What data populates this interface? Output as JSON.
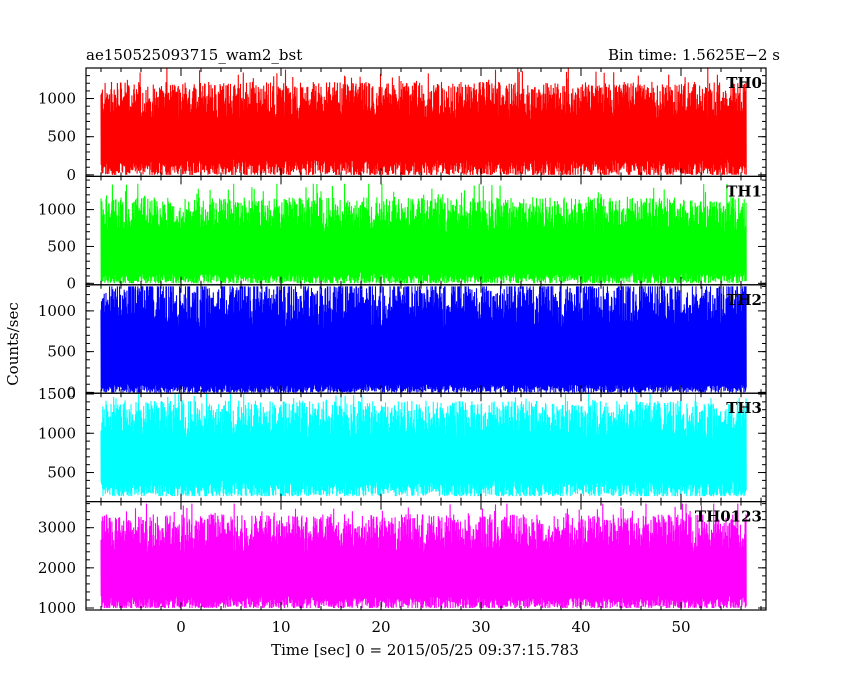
{
  "header": {
    "left_title": "ae150525093715_wam2_bst",
    "right_title": "Bin time: 1.5625E−2 s"
  },
  "axes": {
    "xlabel": "Time [sec] 0 = 2015/05/25 09:37:15.783",
    "ylabel": "Counts/sec"
  },
  "chart_data": {
    "type": "line",
    "title": "ae150525093715_wam2_bst",
    "subtitle": "Bin time: 1.5625E−2 s",
    "xlabel": "Time [sec] 0 = 2015/05/25 09:37:15.783",
    "ylabel": "Counts/sec",
    "x_ticks": [
      0,
      10,
      20,
      30,
      40,
      50
    ],
    "xlim": [
      -9.5,
      58.5
    ],
    "data_x_range": [
      -8,
      56.5
    ],
    "bin_time_s": 0.015625,
    "grid": false,
    "legend": "none",
    "panels": [
      {
        "name": "TH0",
        "color": "#ff0000",
        "ylim": [
          -20,
          1400
        ],
        "y_ticks": [
          0,
          500,
          1000
        ],
        "approx_range": [
          0,
          1400
        ],
        "approx_typical_low": 200,
        "approx_typical_high": 900
      },
      {
        "name": "TH1",
        "color": "#00ff00",
        "ylim": [
          -20,
          1450
        ],
        "y_ticks": [
          0,
          500,
          1000
        ],
        "approx_range": [
          0,
          1350
        ],
        "approx_typical_low": 150,
        "approx_typical_high": 850
      },
      {
        "name": "TH2",
        "color": "#0000ff",
        "ylim": [
          -10,
          1320
        ],
        "y_ticks": [
          0,
          500,
          1000
        ],
        "approx_range": [
          0,
          1300
        ],
        "approx_typical_low": 100,
        "approx_typical_high": 1000
      },
      {
        "name": "TH3",
        "color": "#00ffff",
        "ylim": [
          130,
          1510
        ],
        "y_ticks": [
          500,
          1000,
          1500
        ],
        "approx_range": [
          200,
          1500
        ],
        "approx_typical_low": 400,
        "approx_typical_high": 1100
      },
      {
        "name": "TH0123",
        "color": "#ff00ff",
        "ylim": [
          950,
          3650
        ],
        "y_ticks": [
          1000,
          2000,
          3000
        ],
        "approx_range": [
          1000,
          3600
        ],
        "approx_typical_low": 1300,
        "approx_typical_high": 2700
      }
    ]
  }
}
